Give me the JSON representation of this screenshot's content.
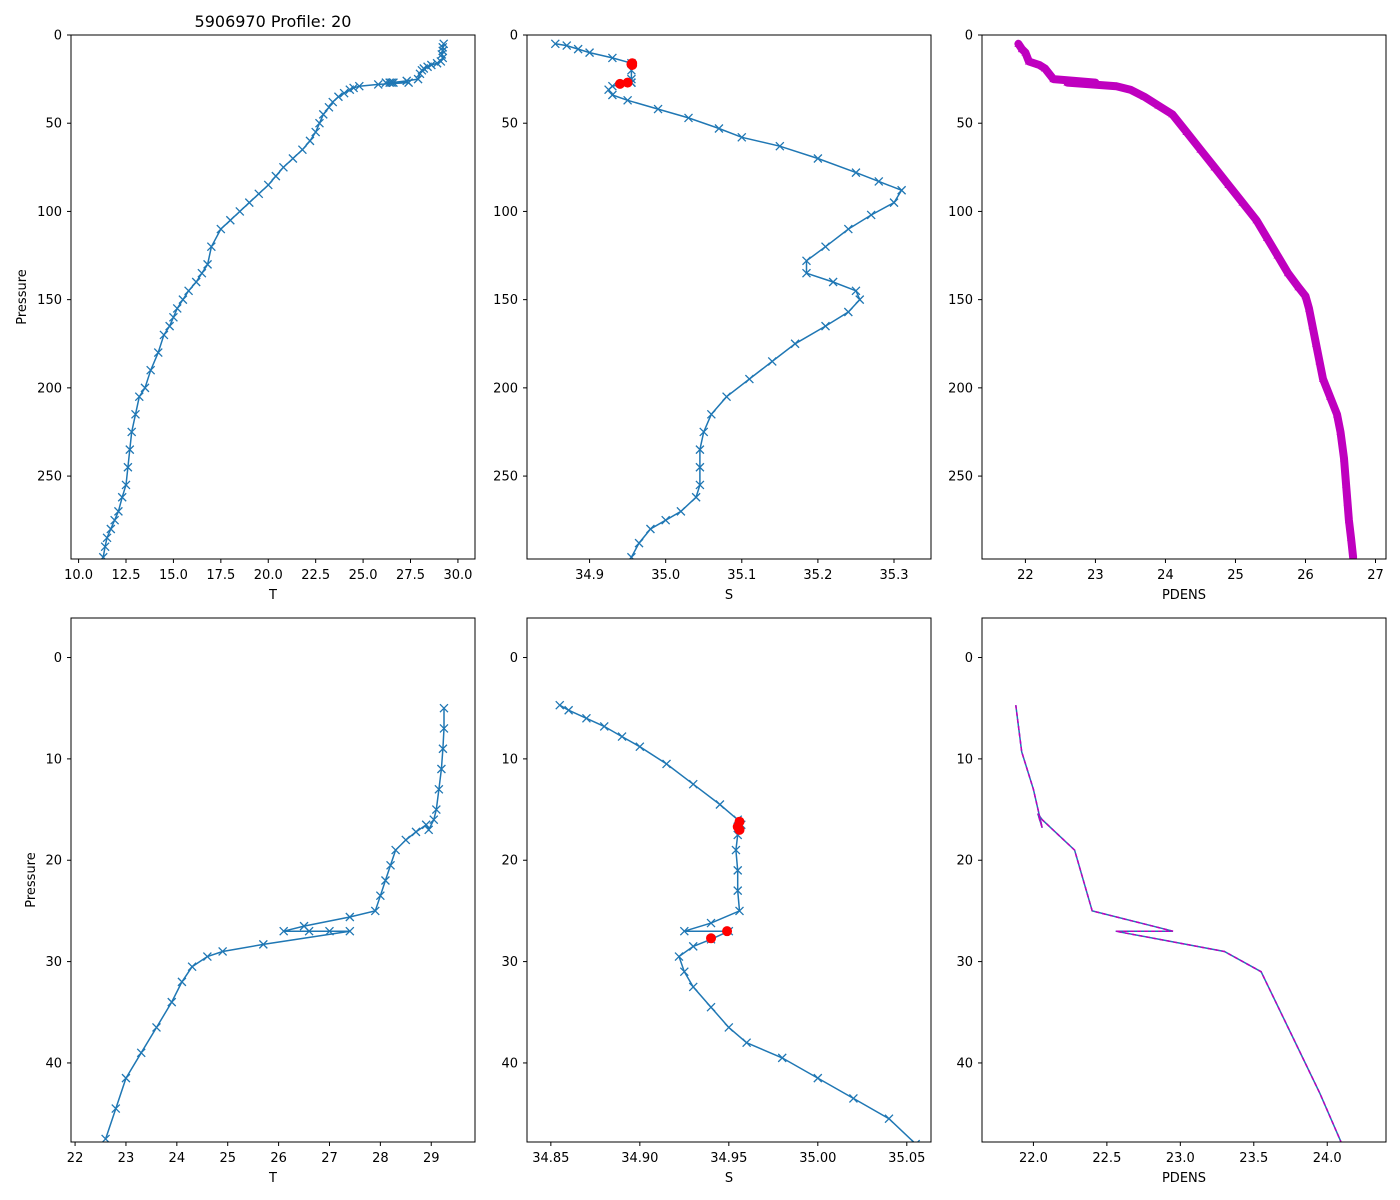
{
  "figure_title": "5906970 Profile: 20",
  "colors": {
    "line": "#1f77b4",
    "flag": "#ff0000",
    "pdens": "#bf00bf"
  },
  "chart_data": [
    {
      "type": "line",
      "panel": "top-left",
      "title": "5906970 Profile: 20",
      "xlabel": "T",
      "ylabel": "Pressure",
      "xlim": [
        9.6,
        30.9
      ],
      "ylim": [
        297,
        0
      ],
      "xticks": [
        10.0,
        12.5,
        15.0,
        17.5,
        20.0,
        22.5,
        25.0,
        27.5,
        30.0
      ],
      "xtick_labels": [
        "10.0",
        "12.5",
        "15.0",
        "17.5",
        "20.0",
        "22.5",
        "25.0",
        "27.5",
        "30.0"
      ],
      "yticks": [
        0,
        50,
        100,
        150,
        200,
        250
      ],
      "ytick_labels": [
        "0",
        "50",
        "100",
        "150",
        "200",
        "250"
      ],
      "series": [
        {
          "name": "T",
          "marker": "x",
          "x": [
            29.25,
            29.2,
            29.2,
            29.15,
            29.2,
            29.1,
            28.9,
            28.6,
            28.4,
            28.2,
            28.1,
            28.0,
            27.9,
            27.3,
            26.5,
            26.2,
            26.6,
            26.4,
            27.4,
            25.8,
            24.8,
            24.5,
            24.3,
            24.0,
            23.7,
            23.4,
            23.2,
            22.9,
            22.7,
            22.5,
            22.2,
            21.8,
            21.3,
            20.8,
            20.4,
            20.0,
            19.5,
            19.0,
            18.5,
            18.0,
            17.5,
            17.0,
            16.8,
            16.5,
            16.2,
            15.8,
            15.5,
            15.2,
            15.0,
            14.8,
            14.5,
            14.2,
            13.8,
            13.5,
            13.2,
            13.0,
            12.8,
            12.7,
            12.6,
            12.5,
            12.3,
            12.1,
            11.9,
            11.7,
            11.5,
            11.4,
            11.3
          ],
          "y": [
            5,
            7,
            9,
            11,
            13,
            15,
            16,
            17,
            18,
            19,
            20,
            22,
            25,
            26,
            27,
            27,
            27,
            27,
            27,
            28,
            29,
            30,
            31,
            33,
            35,
            38,
            41,
            45,
            50,
            55,
            60,
            65,
            70,
            75,
            80,
            85,
            90,
            95,
            100,
            105,
            110,
            120,
            130,
            135,
            140,
            145,
            150,
            155,
            160,
            165,
            170,
            180,
            190,
            200,
            205,
            215,
            225,
            235,
            245,
            255,
            262,
            270,
            275,
            280,
            285,
            290,
            296
          ]
        }
      ]
    },
    {
      "type": "line",
      "panel": "top-middle",
      "title": "",
      "xlabel": "S",
      "ylabel": "",
      "xlim": [
        34.8178,
        35.3486
      ],
      "ylim": [
        297,
        0
      ],
      "xticks": [
        34.9,
        35.0,
        35.1,
        35.2,
        35.3
      ],
      "xtick_labels": [
        "34.9",
        "35.0",
        "35.1",
        "35.2",
        "35.3"
      ],
      "yticks": [
        0,
        50,
        100,
        150,
        200,
        250
      ],
      "ytick_labels": [
        "0",
        "50",
        "100",
        "150",
        "200",
        "250"
      ],
      "series": [
        {
          "name": "S",
          "marker": "x",
          "x": [
            34.855,
            34.87,
            34.885,
            34.9,
            34.93,
            34.955,
            34.955,
            34.955,
            34.955,
            34.955,
            34.93,
            34.925,
            34.93,
            34.95,
            34.99,
            35.03,
            35.07,
            35.1,
            35.15,
            35.2,
            35.25,
            35.28,
            35.31,
            35.3,
            35.27,
            35.24,
            35.21,
            35.185,
            35.185,
            35.22,
            35.25,
            35.255,
            35.24,
            35.21,
            35.17,
            35.14,
            35.11,
            35.08,
            35.06,
            35.05,
            35.045,
            35.045,
            35.045,
            35.04,
            35.02,
            35.0,
            34.98,
            34.965,
            34.955
          ],
          "y": [
            5,
            6,
            8,
            10,
            13,
            16,
            20,
            25,
            27,
            27,
            29,
            31,
            34,
            37,
            42,
            47,
            53,
            58,
            63,
            70,
            78,
            83,
            88,
            95,
            102,
            110,
            120,
            128,
            135,
            140,
            145,
            150,
            157,
            165,
            175,
            185,
            195,
            205,
            215,
            225,
            235,
            245,
            255,
            262,
            270,
            275,
            280,
            288,
            296
          ]
        },
        {
          "name": "flagged",
          "marker": "o",
          "x": [
            34.956,
            34.955,
            34.956,
            34.94,
            34.95
          ],
          "y": [
            16,
            16.5,
            17,
            27.7,
            27
          ]
        }
      ]
    },
    {
      "type": "line",
      "panel": "top-right",
      "title": "",
      "xlabel": "PDENS",
      "ylabel": "",
      "xlim": [
        21.38,
        27.15
      ],
      "ylim": [
        297,
        0
      ],
      "xticks": [
        22,
        23,
        24,
        25,
        26,
        27
      ],
      "xtick_labels": [
        "22",
        "23",
        "24",
        "25",
        "26",
        "27"
      ],
      "yticks": [
        0,
        50,
        100,
        150,
        200,
        250
      ],
      "ytick_labels": [
        "0",
        "50",
        "100",
        "150",
        "200",
        "250"
      ],
      "series": [
        {
          "name": "PDENS",
          "marker": "^",
          "x": [
            21.9,
            21.95,
            22.0,
            22.05,
            22.2,
            22.28,
            22.4,
            22.7,
            23.0,
            22.6,
            23.3,
            23.5,
            23.7,
            23.9,
            24.1,
            24.3,
            24.5,
            24.7,
            24.9,
            25.1,
            25.3,
            25.45,
            25.6,
            25.75,
            25.9,
            26.0,
            26.05,
            26.1,
            26.15,
            26.2,
            26.25,
            26.35,
            26.45,
            26.5,
            26.55,
            26.58,
            26.6,
            26.62,
            26.65,
            26.68
          ],
          "y": [
            5,
            8,
            10,
            15,
            17,
            19,
            25,
            26,
            27,
            27,
            29,
            31,
            35,
            40,
            45,
            55,
            65,
            75,
            85,
            95,
            105,
            115,
            125,
            135,
            143,
            148,
            155,
            165,
            175,
            185,
            195,
            205,
            215,
            225,
            240,
            255,
            265,
            275,
            285,
            296
          ]
        }
      ]
    },
    {
      "type": "line",
      "panel": "bottom-left",
      "title": "",
      "xlabel": "T",
      "ylabel": "Pressure",
      "xlim": [
        21.92,
        29.86
      ],
      "ylim": [
        47.8,
        -3.9
      ],
      "xticks": [
        22,
        23,
        24,
        25,
        26,
        27,
        28,
        29
      ],
      "xtick_labels": [
        "22",
        "23",
        "24",
        "25",
        "26",
        "27",
        "28",
        "29"
      ],
      "yticks": [
        0,
        10,
        20,
        30,
        40
      ],
      "ytick_labels": [
        "0",
        "10",
        "20",
        "30",
        "40"
      ],
      "series": [
        {
          "name": "T",
          "marker": "x",
          "x": [
            29.25,
            29.25,
            29.23,
            29.2,
            29.15,
            29.1,
            29.05,
            28.95,
            28.9,
            28.7,
            28.5,
            28.3,
            28.2,
            28.1,
            28.0,
            27.9,
            27.4,
            26.5,
            26.1,
            26.6,
            27.0,
            27.4,
            25.7,
            24.9,
            24.6,
            24.3,
            24.1,
            23.9,
            23.6,
            23.3,
            23.0,
            22.8,
            22.6
          ],
          "y": [
            5,
            7,
            9,
            11,
            13,
            15,
            16,
            17,
            16.5,
            17.2,
            18,
            19,
            20.5,
            22,
            23.5,
            25,
            25.6,
            26.5,
            27,
            27,
            27,
            27,
            28.3,
            29,
            29.5,
            30.5,
            32,
            34,
            36.5,
            39,
            41.5,
            44.5,
            47.5
          ]
        }
      ]
    },
    {
      "type": "line",
      "panel": "bottom-middle",
      "title": "",
      "xlabel": "S",
      "ylabel": "",
      "xlim": [
        34.8366,
        35.0636
      ],
      "ylim": [
        47.8,
        -3.9
      ],
      "xticks": [
        34.85,
        34.9,
        34.95,
        35.0,
        35.05
      ],
      "xtick_labels": [
        "34.85",
        "34.90",
        "34.95",
        "35.00",
        "35.05"
      ],
      "yticks": [
        0,
        10,
        20,
        30,
        40
      ],
      "ytick_labels": [
        "0",
        "10",
        "20",
        "30",
        "40"
      ],
      "series": [
        {
          "name": "S",
          "marker": "x",
          "x": [
            34.855,
            34.86,
            34.87,
            34.88,
            34.89,
            34.9,
            34.915,
            34.93,
            34.945,
            34.955,
            34.957,
            34.955,
            34.954,
            34.955,
            34.955,
            34.956,
            34.94,
            34.925,
            34.95,
            34.94,
            34.93,
            34.922,
            34.925,
            34.93,
            34.94,
            34.95,
            34.96,
            34.98,
            35.0,
            35.02,
            35.04,
            35.055
          ],
          "y": [
            4.7,
            5.2,
            6.0,
            6.8,
            7.8,
            8.8,
            10.5,
            12.5,
            14.5,
            16.0,
            16.5,
            17.5,
            19.0,
            21.0,
            23.0,
            25.0,
            26.2,
            27.0,
            27.0,
            27.8,
            28.5,
            29.5,
            31.0,
            32.5,
            34.5,
            36.5,
            38.0,
            39.5,
            41.5,
            43.5,
            45.5,
            48.0
          ]
        },
        {
          "name": "flagged",
          "marker": "o",
          "x": [
            34.956,
            34.955,
            34.956,
            34.94,
            34.949
          ],
          "y": [
            16.2,
            16.7,
            17.0,
            27.7,
            27.0
          ]
        }
      ]
    },
    {
      "type": "line",
      "panel": "bottom-right",
      "title": "",
      "xlabel": "PDENS",
      "ylabel": "",
      "xlim": [
        21.65,
        24.4
      ],
      "ylim": [
        47.8,
        -3.9
      ],
      "xticks": [
        22.0,
        22.5,
        23.0,
        23.5,
        24.0
      ],
      "xtick_labels": [
        "22.0",
        "22.5",
        "23.0",
        "23.5",
        "24.0"
      ],
      "yticks": [
        0,
        10,
        20,
        30,
        40
      ],
      "ytick_labels": [
        "0",
        "10",
        "20",
        "30",
        "40"
      ],
      "series": [
        {
          "name": "PDENS",
          "marker": "none",
          "x": [
            21.88,
            21.92,
            22.0,
            22.06,
            22.03,
            22.06,
            22.28,
            22.4,
            22.95,
            22.56,
            23.3,
            23.55,
            23.75,
            23.95,
            24.1
          ],
          "y": [
            4.7,
            9.3,
            13.0,
            16.8,
            15.4,
            16.0,
            19.0,
            25.0,
            27.0,
            27.0,
            29.0,
            31.0,
            37.0,
            43.0,
            48.0
          ]
        }
      ]
    }
  ]
}
